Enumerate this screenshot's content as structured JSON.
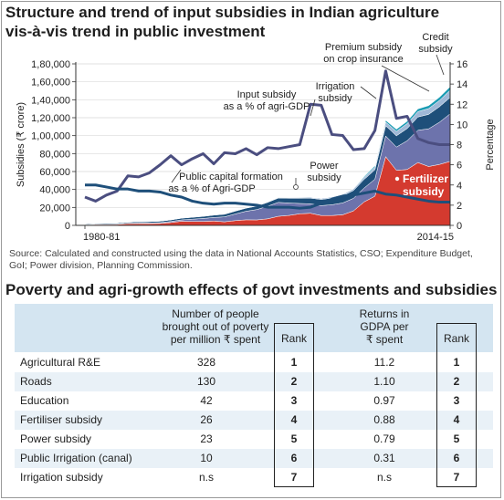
{
  "title_top_line1": "Structure and trend of input subsidies in Indian agriculture",
  "title_top_line2": "vis-à-vis trend in public investment",
  "chart_data": {
    "type": "area",
    "x_start": 1980,
    "x_end": 2014,
    "x_tick_labels": [
      "1980-81",
      "2014-15"
    ],
    "ylabel_left": "Subsidies (₹ crore)",
    "ylabel_right": "Percentage",
    "ylim_left": [
      0,
      180000
    ],
    "ylim_right": [
      0,
      16
    ],
    "left_ticks": [
      "0",
      "20,000",
      "40,000",
      "60,000",
      "80,000",
      "1,00,000",
      "1,20,000",
      "1,40,000",
      "1,60,000",
      "1,80,000"
    ],
    "right_ticks": [
      "0",
      "2",
      "4",
      "6",
      "8",
      "10",
      "12",
      "14",
      "16"
    ],
    "stacked_areas": [
      {
        "name": "Fertilizer subsidy",
        "color": "#d43a2f",
        "values": [
          600,
          1000,
          1000,
          1100,
          1900,
          2000,
          2000,
          2200,
          3200,
          4600,
          4400,
          4400,
          4800,
          4000,
          5300,
          6200,
          6100,
          7300,
          10100,
          11100,
          12900,
          13500,
          11000,
          11000,
          11800,
          16100,
          26200,
          32500,
          76600,
          61300,
          62300,
          70000,
          65600,
          67900,
          71300
        ]
      },
      {
        "name": "Power subsidy",
        "color": "#6d73ac",
        "values": [
          200,
          300,
          300,
          400,
          500,
          600,
          700,
          800,
          1100,
          1500,
          2500,
          3300,
          4000,
          5500,
          7400,
          9500,
          11500,
          14000,
          15500,
          13800,
          11500,
          10500,
          11000,
          12000,
          13200,
          14000,
          15500,
          19000,
          23000,
          26000,
          32000,
          36000,
          42000,
          47000,
          53000
        ]
      },
      {
        "name": "Irrigation subsidy",
        "color": "#1e4f7a",
        "values": [
          800,
          900,
          1000,
          1100,
          1200,
          1400,
          1500,
          1700,
          1800,
          1900,
          2100,
          2300,
          2600,
          2900,
          3200,
          3500,
          3900,
          4300,
          4800,
          5300,
          5800,
          6300,
          6900,
          7400,
          8000,
          8800,
          9600,
          10500,
          11500,
          12500,
          13600,
          14800,
          16100,
          17300,
          18300
        ]
      },
      {
        "name": "Premium subsidy on crop insurance",
        "color": "#9fb8d7",
        "values": [
          0,
          0,
          0,
          0,
          0,
          0,
          100,
          100,
          100,
          200,
          200,
          300,
          300,
          400,
          400,
          500,
          500,
          600,
          700,
          800,
          900,
          1000,
          1100,
          1300,
          1500,
          1800,
          2200,
          3000,
          4000,
          5000,
          5500,
          6000,
          6500,
          7000,
          8000
        ]
      },
      {
        "name": "Credit subsidy",
        "color": "#1a9bb3",
        "values": [
          0,
          0,
          0,
          0,
          0,
          0,
          0,
          0,
          0,
          0,
          0,
          0,
          0,
          0,
          0,
          0,
          0,
          0,
          0,
          0,
          0,
          0,
          0,
          0,
          0,
          0,
          1000,
          1500,
          2000,
          2300,
          2600,
          3000,
          3300,
          3600,
          4000
        ]
      }
    ],
    "lines": [
      {
        "name": "Input subsidy as a % of agri-GDP",
        "axis": "right",
        "color": "#4b4e80",
        "values": [
          2.8,
          2.4,
          3.0,
          3.4,
          4.9,
          4.8,
          5.2,
          6.0,
          6.9,
          6.0,
          6.6,
          7.1,
          6.1,
          7.2,
          7.1,
          7.6,
          7.0,
          7.7,
          7.6,
          7.8,
          8.0,
          12.0,
          11.9,
          9.0,
          8.9,
          7.5,
          7.6,
          9.4,
          15.3,
          10.6,
          10.8,
          8.6,
          8.2,
          8.0,
          8.0
        ]
      },
      {
        "name": "Public capital formation as a % of Agri-GDP",
        "axis": "right",
        "color": "#1e4f7a",
        "values": [
          4.0,
          4.0,
          3.8,
          3.6,
          3.6,
          3.4,
          3.4,
          3.3,
          3.0,
          2.8,
          2.4,
          2.2,
          2.1,
          2.2,
          2.2,
          2.1,
          2.0,
          1.8,
          1.8,
          1.8,
          1.7,
          1.8,
          2.2,
          2.6,
          2.9,
          3.0,
          3.2,
          3.4,
          3.1,
          3.0,
          2.8,
          2.6,
          2.4,
          2.3,
          2.3
        ]
      }
    ],
    "annotations": {
      "input_subsidy_pct": [
        "Input subsidy",
        "as a % of agri-GDP"
      ],
      "irrigation": [
        "Irrigation",
        "subsidy"
      ],
      "premium": [
        "Premium subsidy",
        "on crop insurance"
      ],
      "credit": [
        "Credit",
        "subsidy"
      ],
      "power": [
        "Power",
        "subsidy"
      ],
      "fertilizer": [
        "Fertilizer",
        "subsidy"
      ],
      "public_capital": [
        "Public capital formation",
        "as a % of Agri-GDP"
      ]
    }
  },
  "source_text": "Source: Calculated and constructed using the data in National Accounts Statistics, CSO; Expenditure Budget, GoI; Power division, Planning Commission.",
  "title_table": "Poverty and agri-growth effects of govt investments and subsidies",
  "table": {
    "header_poverty": [
      "Number of people",
      "brought out of poverty",
      "per million ₹ spent"
    ],
    "header_rank": "Rank",
    "header_returns": [
      "Returns in",
      "GDPA per",
      "₹ spent"
    ],
    "rows": [
      {
        "name": "Agricultural R&E",
        "poverty": "328",
        "rank1": "1",
        "returns": "11.2",
        "rank2": "1"
      },
      {
        "name": "Roads",
        "poverty": "130",
        "rank1": "2",
        "returns": "1.10",
        "rank2": "2"
      },
      {
        "name": "Education",
        "poverty": "42",
        "rank1": "3",
        "returns": "0.97",
        "rank2": "3"
      },
      {
        "name": "Fertiliser subsidy",
        "poverty": "26",
        "rank1": "4",
        "returns": "0.88",
        "rank2": "4"
      },
      {
        "name": "Power subsidy",
        "poverty": "23",
        "rank1": "5",
        "returns": "0.79",
        "rank2": "5"
      },
      {
        "name": "Public Irrigation (canal)",
        "poverty": "10",
        "rank1": "6",
        "returns": "0.31",
        "rank2": "6"
      },
      {
        "name": "Irrigation subsidy",
        "poverty": "n.s",
        "rank1": "7",
        "returns": "n.s",
        "rank2": "7"
      }
    ]
  }
}
